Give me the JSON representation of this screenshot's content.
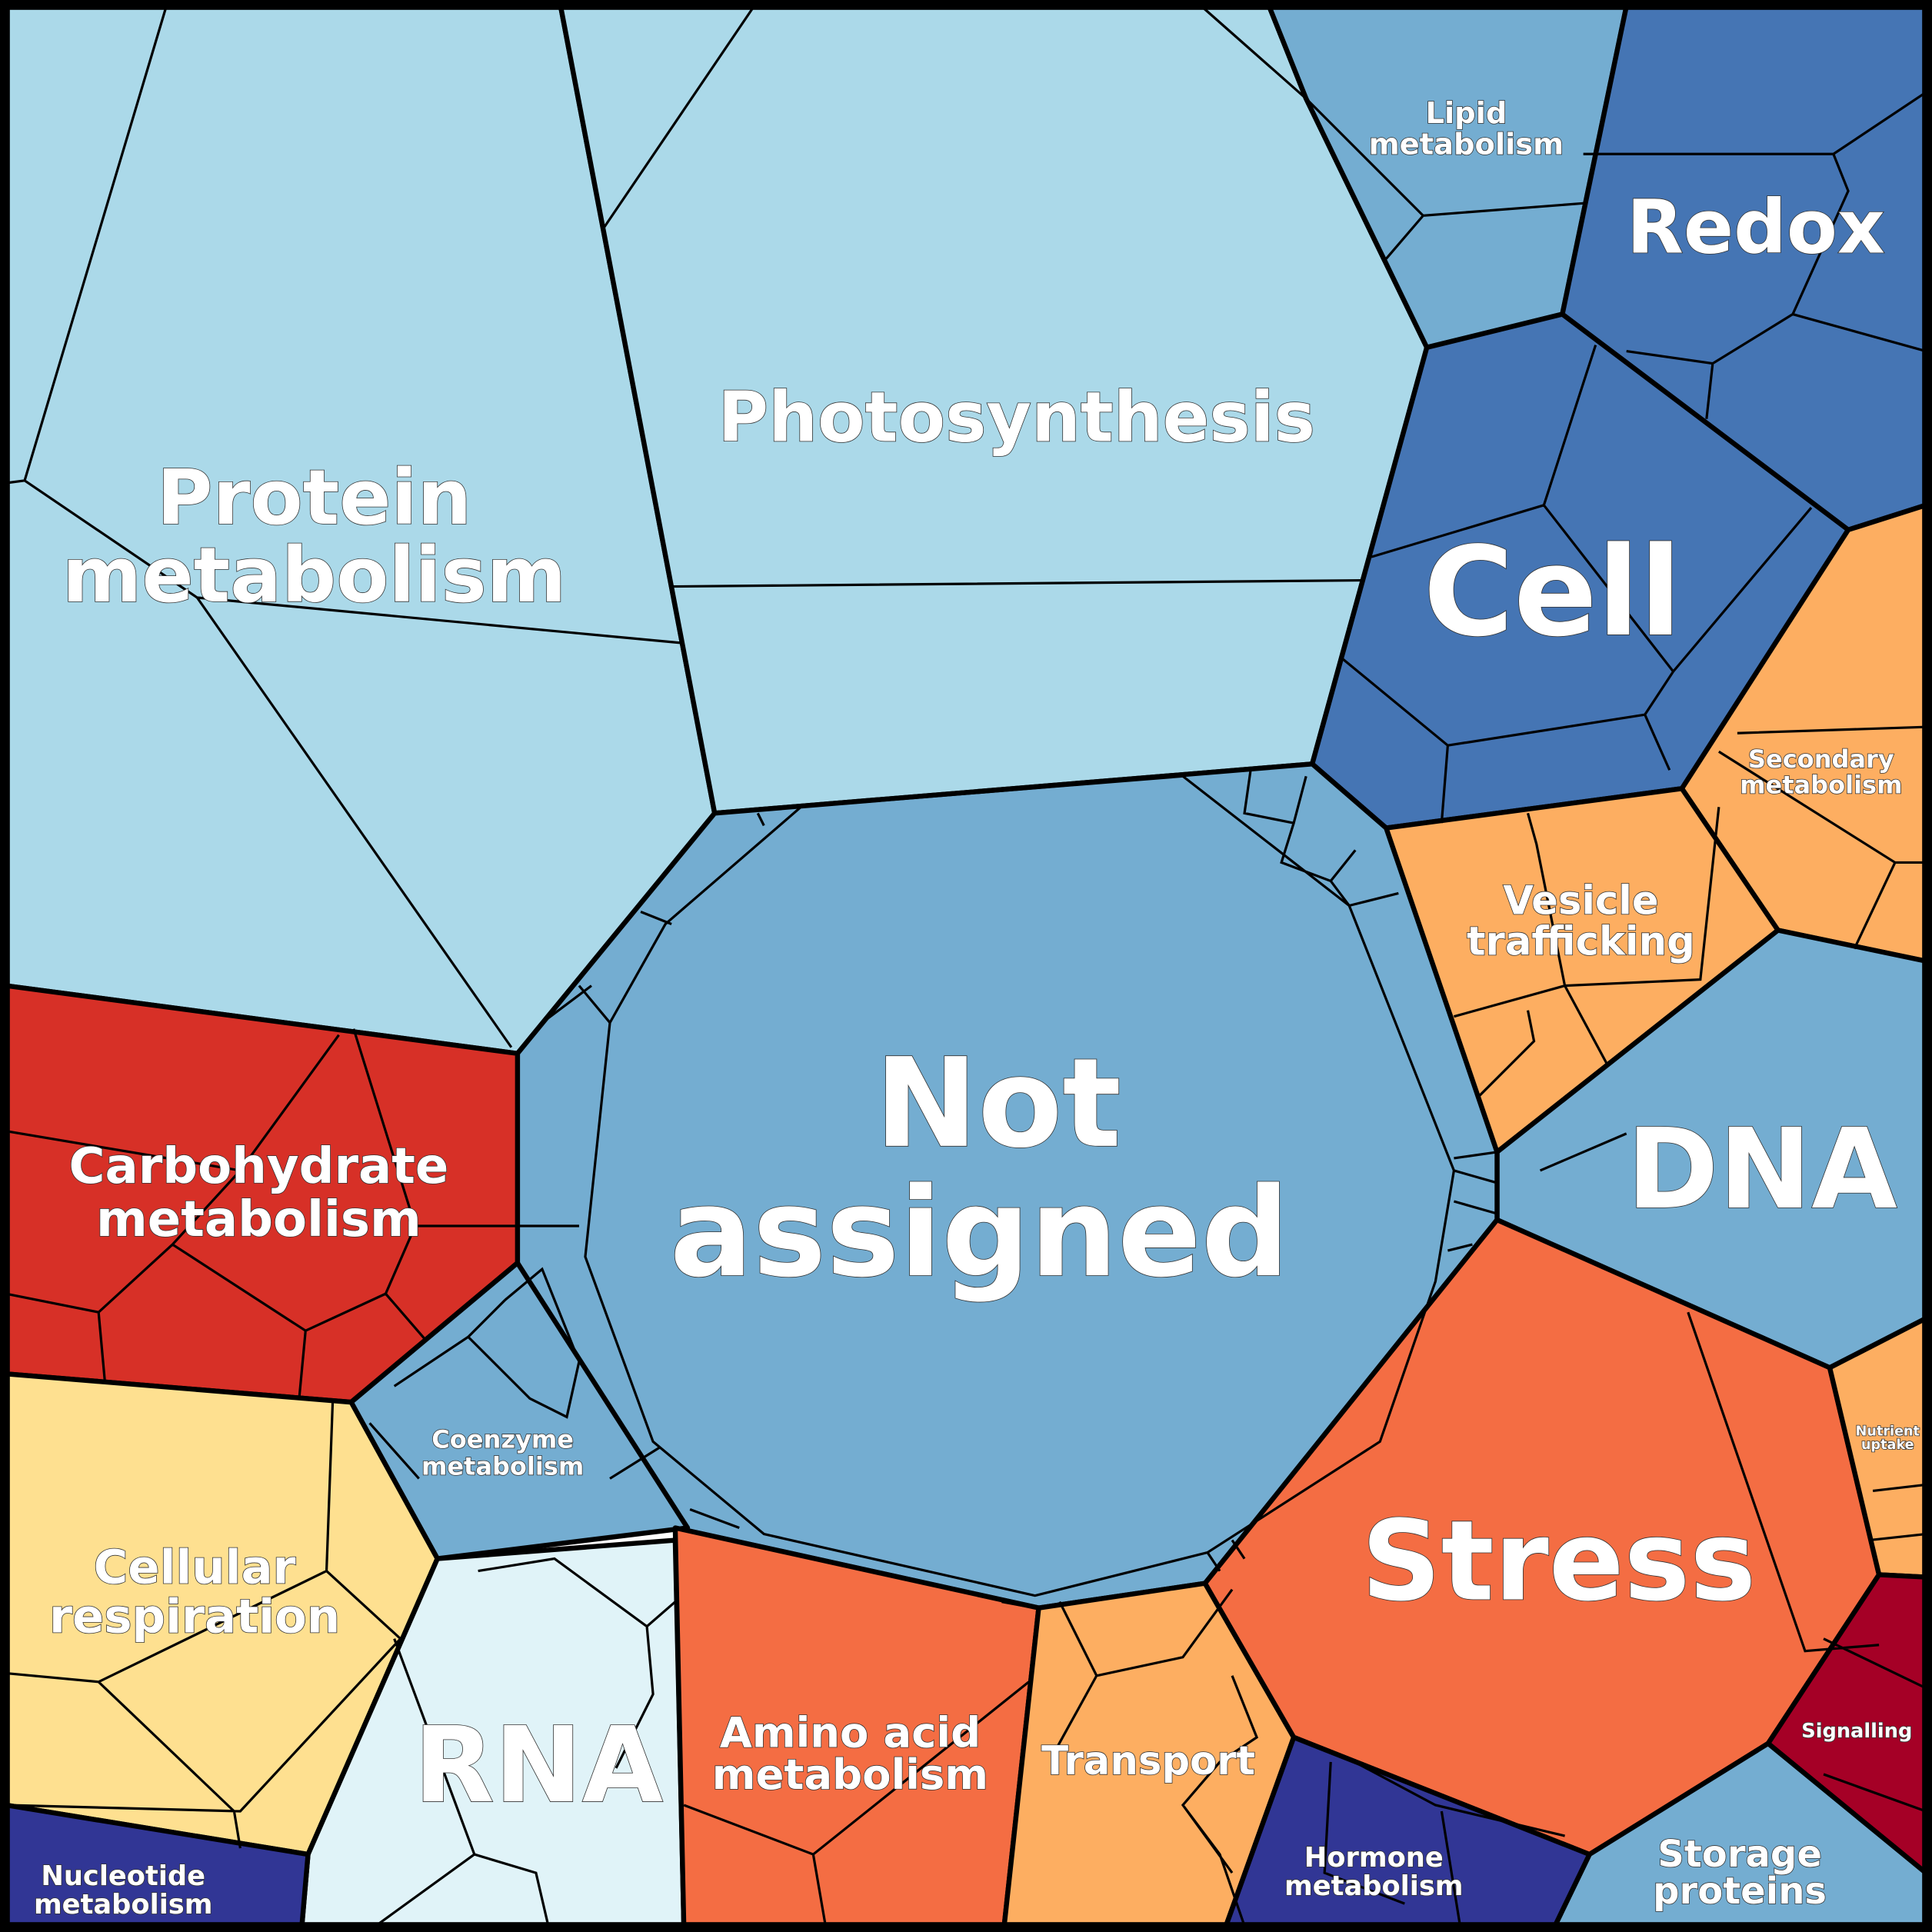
{
  "cells": [
    {
      "lines": [
        "Protein",
        "metabolism"
      ]
    },
    {
      "lines": [
        "Photosynthesis"
      ]
    },
    {
      "lines": [
        "Lipid",
        "metabolism"
      ]
    },
    {
      "lines": [
        "Redox"
      ]
    },
    {
      "lines": [
        "Cell"
      ]
    },
    {
      "lines": [
        "Secondary",
        "metabolism"
      ]
    },
    {
      "lines": [
        "Vesicle",
        "trafficking"
      ]
    },
    {
      "lines": [
        "DNA"
      ]
    },
    {
      "lines": [
        "Not",
        "assigned"
      ]
    },
    {
      "lines": [
        "Carbohydrate",
        "metabolism"
      ]
    },
    {
      "lines": [
        "Coenzyme",
        "metabolism"
      ]
    },
    {
      "lines": [
        "Cellular",
        "respiration"
      ]
    },
    {
      "lines": [
        "RNA"
      ]
    },
    {
      "lines": [
        "Amino acid",
        "metabolism"
      ]
    },
    {
      "lines": [
        "Transport"
      ]
    },
    {
      "lines": [
        "Stress"
      ]
    },
    {
      "lines": [
        "Nutrient",
        "uptake"
      ]
    },
    {
      "lines": [
        "Signalling"
      ]
    },
    {
      "lines": [
        "Storage",
        "proteins"
      ]
    },
    {
      "lines": [
        "Hormone",
        "metabolism"
      ]
    },
    {
      "lines": [
        "Nucleotide",
        "metabolism"
      ]
    }
  ]
}
